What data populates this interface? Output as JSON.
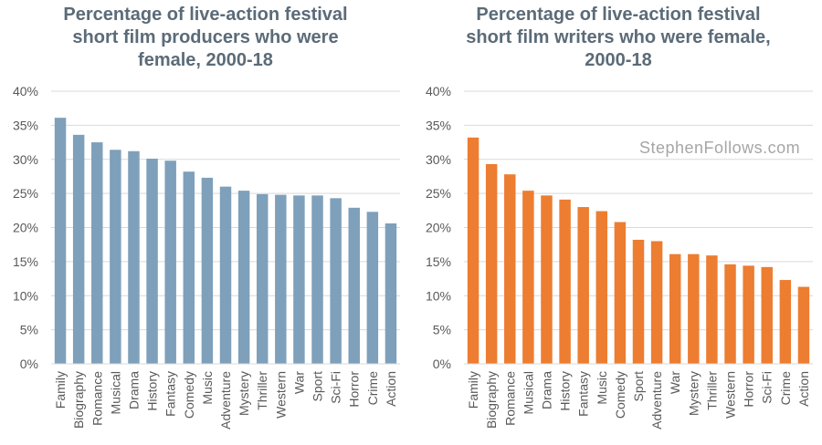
{
  "watermark": "StephenFollows.com",
  "chart_data": [
    {
      "type": "bar",
      "title_lines": [
        "Percentage of live-action festival",
        "short film producers who were",
        "female, 2000-18"
      ],
      "categories": [
        "Family",
        "Biography",
        "Romance",
        "Musical",
        "Drama",
        "History",
        "Fantasy",
        "Comedy",
        "Music",
        "Adventure",
        "Mystery",
        "Thriller",
        "Western",
        "War",
        "Sport",
        "Sci-Fi",
        "Horror",
        "Crime",
        "Action"
      ],
      "values": [
        36.1,
        33.6,
        32.5,
        31.4,
        31.2,
        30.1,
        29.8,
        28.2,
        27.3,
        26.0,
        25.4,
        24.9,
        24.8,
        24.7,
        24.7,
        24.3,
        22.9,
        22.3,
        20.6
      ],
      "y_ticks": [
        "0%",
        "5%",
        "10%",
        "15%",
        "20%",
        "25%",
        "30%",
        "35%",
        "40%"
      ],
      "ylim": [
        0,
        40
      ],
      "color": "#7ea0bb",
      "grid": true
    },
    {
      "type": "bar",
      "title_lines": [
        "Percentage of live-action festival",
        "short film writers who were female,",
        "2000-18"
      ],
      "categories": [
        "Family",
        "Biography",
        "Romance",
        "Musical",
        "Drama",
        "History",
        "Fantasy",
        "Music",
        "Comedy",
        "Sport",
        "Adventure",
        "War",
        "Mystery",
        "Thriller",
        "Western",
        "Horror",
        "Sci-Fi",
        "Crime",
        "Action"
      ],
      "values": [
        33.2,
        29.3,
        27.8,
        25.4,
        24.7,
        24.1,
        23.0,
        22.4,
        20.8,
        18.2,
        18.0,
        16.1,
        16.1,
        15.9,
        14.6,
        14.4,
        14.2,
        12.3,
        11.3
      ],
      "y_ticks": [
        "0%",
        "5%",
        "10%",
        "15%",
        "20%",
        "25%",
        "30%",
        "35%",
        "40%"
      ],
      "ylim": [
        0,
        40
      ],
      "color": "#ed7d31",
      "grid": true
    }
  ]
}
